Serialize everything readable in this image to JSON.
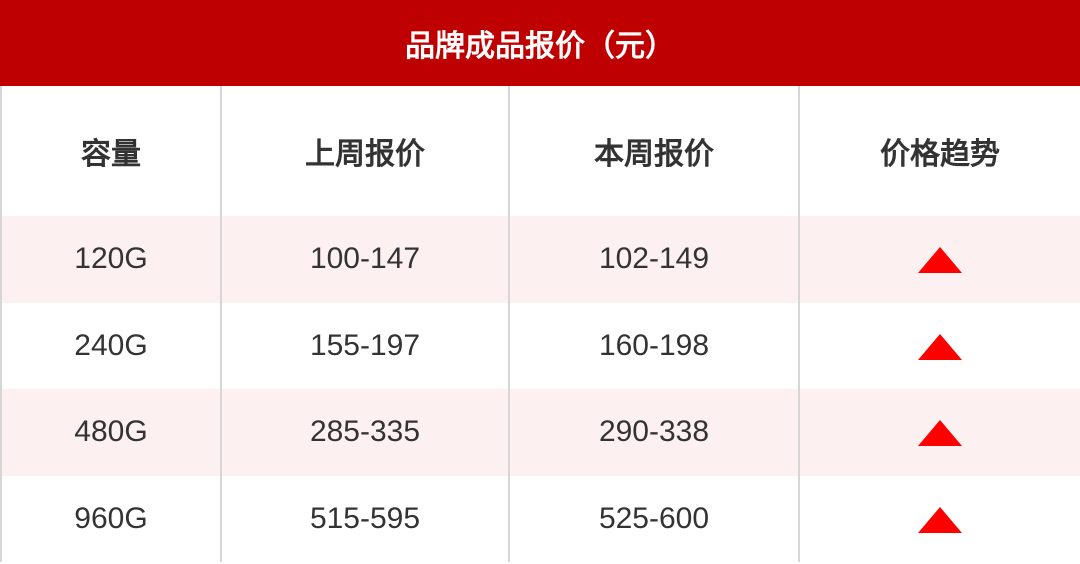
{
  "title": "品牌成品报价（元）",
  "columns": [
    "容量",
    "上周报价",
    "本周报价",
    "价格趋势"
  ],
  "rows": [
    {
      "capacity": "120G",
      "last_week": "100-147",
      "this_week": "102-149",
      "trend": "up"
    },
    {
      "capacity": "240G",
      "last_week": "155-197",
      "this_week": "160-198",
      "trend": "up"
    },
    {
      "capacity": "480G",
      "last_week": "285-335",
      "this_week": "290-338",
      "trend": "up"
    },
    {
      "capacity": "960G",
      "last_week": "515-595",
      "this_week": "525-600",
      "trend": "up"
    }
  ],
  "colors": {
    "header": "#bf0000",
    "alt_row": "#fcf0f0",
    "trend_up": "#ff0000"
  }
}
